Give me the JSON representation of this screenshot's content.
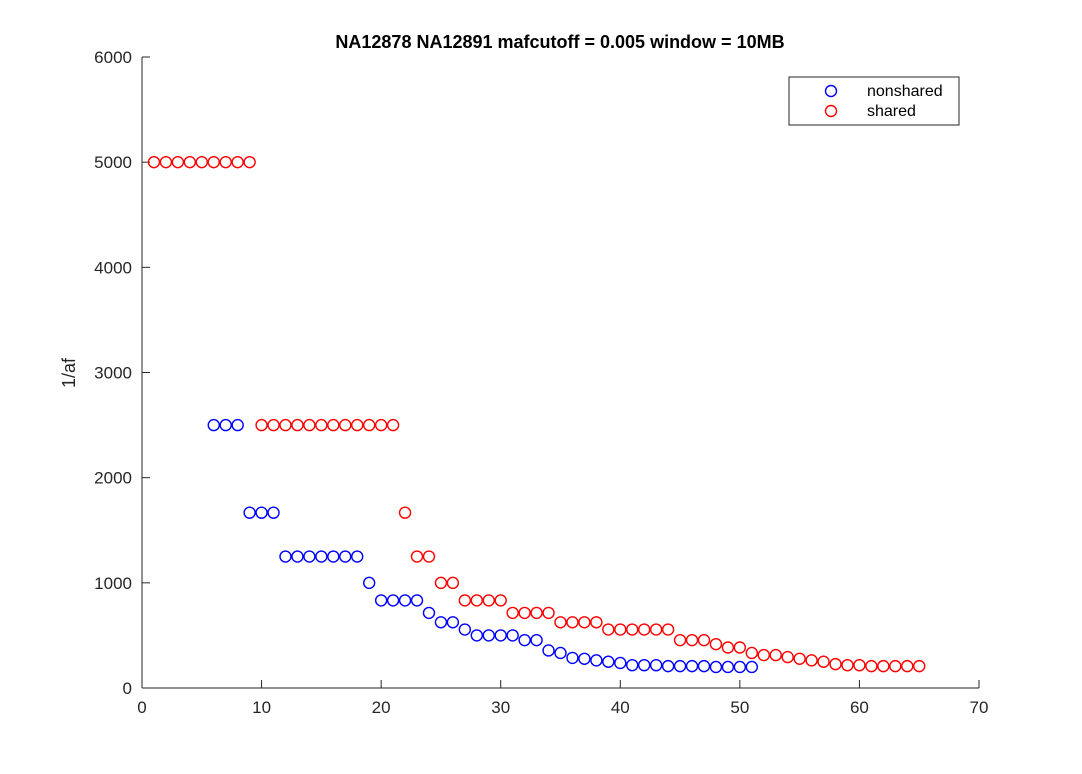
{
  "chart_data": {
    "type": "scatter",
    "title": "NA12878 NA12891 mafcutoff = 0.005 window = 10MB",
    "xlabel": "",
    "ylabel": "1/af",
    "xlim": [
      0,
      70
    ],
    "ylim": [
      0,
      6000
    ],
    "xticks": [
      "0",
      "10",
      "20",
      "30",
      "40",
      "50",
      "60",
      "70"
    ],
    "yticks": [
      "0",
      "1000",
      "2000",
      "3000",
      "4000",
      "5000",
      "6000"
    ],
    "grid": false,
    "legend_position": "top-right",
    "series": [
      {
        "name": "nonshared",
        "color": "#0000ff",
        "marker": "circle-open",
        "x": [
          6,
          7,
          8,
          9,
          10,
          11,
          12,
          13,
          14,
          15,
          16,
          17,
          18,
          19,
          20,
          21,
          22,
          23,
          24,
          25,
          26,
          27,
          28,
          29,
          30,
          31,
          32,
          33,
          34,
          35,
          36,
          37,
          38,
          39,
          40,
          41,
          42,
          43,
          44,
          45,
          46,
          47,
          48,
          49,
          50,
          51
        ],
        "y": [
          2500,
          2500,
          2500,
          1667,
          1667,
          1667,
          1250,
          1250,
          1250,
          1250,
          1250,
          1250,
          1250,
          1000,
          833,
          833,
          833,
          833,
          714,
          625,
          625,
          556,
          500,
          500,
          500,
          500,
          455,
          455,
          357,
          333,
          286,
          278,
          263,
          250,
          238,
          217,
          217,
          217,
          208,
          208,
          208,
          208,
          200,
          200,
          200,
          200
        ]
      },
      {
        "name": "shared",
        "color": "#ff0000",
        "marker": "circle-open",
        "x": [
          1,
          2,
          3,
          4,
          5,
          6,
          7,
          8,
          9,
          10,
          11,
          12,
          13,
          14,
          15,
          16,
          17,
          18,
          19,
          20,
          21,
          22,
          23,
          24,
          25,
          26,
          27,
          28,
          29,
          30,
          31,
          32,
          33,
          34,
          35,
          36,
          37,
          38,
          39,
          40,
          41,
          42,
          43,
          44,
          45,
          46,
          47,
          48,
          49,
          50,
          51,
          52,
          53,
          54,
          55,
          56,
          57,
          58,
          59,
          60,
          61,
          62,
          63,
          64,
          65
        ],
        "y": [
          5000,
          5000,
          5000,
          5000,
          5000,
          5000,
          5000,
          5000,
          5000,
          2500,
          2500,
          2500,
          2500,
          2500,
          2500,
          2500,
          2500,
          2500,
          2500,
          2500,
          2500,
          1667,
          1250,
          1250,
          1000,
          1000,
          833,
          833,
          833,
          833,
          714,
          714,
          714,
          714,
          625,
          625,
          625,
          625,
          556,
          556,
          556,
          556,
          556,
          556,
          455,
          455,
          455,
          417,
          385,
          385,
          333,
          313,
          313,
          294,
          278,
          263,
          250,
          227,
          217,
          217,
          208,
          208,
          208,
          208,
          208
        ]
      }
    ]
  }
}
